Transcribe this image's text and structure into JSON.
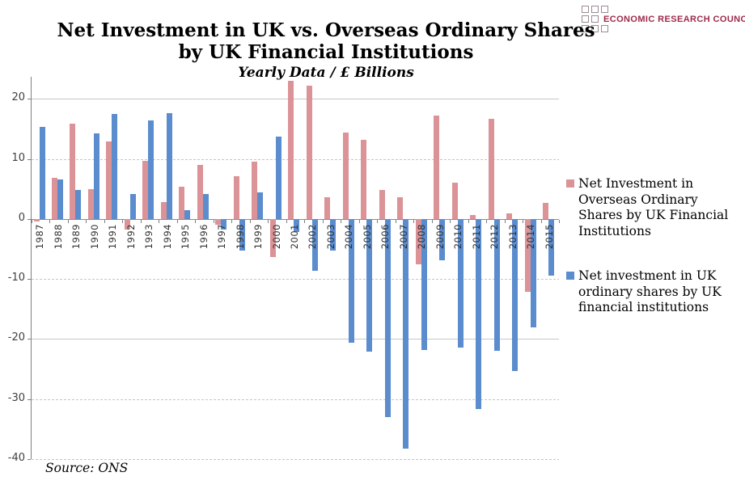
{
  "header": {
    "title_line1": "Net Investment in UK vs. Overseas Ordinary Shares",
    "title_line2": "by UK Financial Institutions",
    "subtitle": "Yearly Data / £ Billions",
    "logo_text": "ECONOMIC RESEARCH COUNCIL"
  },
  "footer": {
    "source": "Source: ONS"
  },
  "legend": {
    "items": [
      {
        "label": "Net Investment in Overseas Ordinary Shares by UK Financial Institutions",
        "color": "#db9398"
      },
      {
        "label": "Net investment in UK ordinary shares by UK financial institutions",
        "color": "#5b8cce"
      }
    ]
  },
  "chart_data": {
    "type": "bar",
    "title": "Net Investment in UK vs. Overseas Ordinary Shares by UK Financial Institutions",
    "subtitle": "Yearly Data / £ Billions",
    "xlabel": "",
    "ylabel": "£ Billions",
    "ylim": [
      -40,
      23.7
    ],
    "yticks": [
      20,
      10,
      0,
      -10,
      -20,
      -30,
      -40
    ],
    "grid": true,
    "legend_position": "right",
    "source": "ONS",
    "categories": [
      "1987",
      "1988",
      "1989",
      "1990",
      "1991",
      "1992",
      "1993",
      "1994",
      "1995",
      "1996",
      "1997",
      "1998",
      "1999",
      "2000",
      "2001",
      "2002",
      "2003",
      "2004",
      "2005",
      "2006",
      "2007",
      "2008",
      "2009",
      "2010",
      "2011",
      "2012",
      "2013",
      "2014",
      "2015"
    ],
    "series": [
      {
        "name": "Net Investment in Overseas Ordinary Shares by UK Financial Institutions",
        "key": "overseas",
        "color": "#db9398",
        "values": [
          -0.4,
          6.8,
          15.9,
          5.0,
          12.9,
          -1.7,
          9.7,
          2.8,
          5.4,
          9.0,
          -1.0,
          7.1,
          9.6,
          -6.4,
          23.0,
          22.2,
          3.7,
          14.4,
          13.2,
          4.9,
          3.6,
          -7.6,
          17.3,
          6.0,
          0.7,
          16.7,
          1.0,
          -12.1,
          2.7
        ]
      },
      {
        "name": "Net investment in UK ordinary shares by UK financial institutions",
        "key": "uk",
        "color": "#5b8cce",
        "values": [
          15.4,
          6.6,
          4.9,
          14.3,
          17.5,
          4.2,
          16.4,
          17.6,
          1.5,
          4.2,
          -1.7,
          -5.2,
          4.5,
          13.8,
          -2.1,
          -8.6,
          -5.2,
          -20.6,
          -22.1,
          -33.0,
          -38.2,
          -21.8,
          -6.9,
          -21.4,
          -31.7,
          -22.0,
          -25.3,
          -18.0,
          -9.4
        ]
      }
    ]
  }
}
